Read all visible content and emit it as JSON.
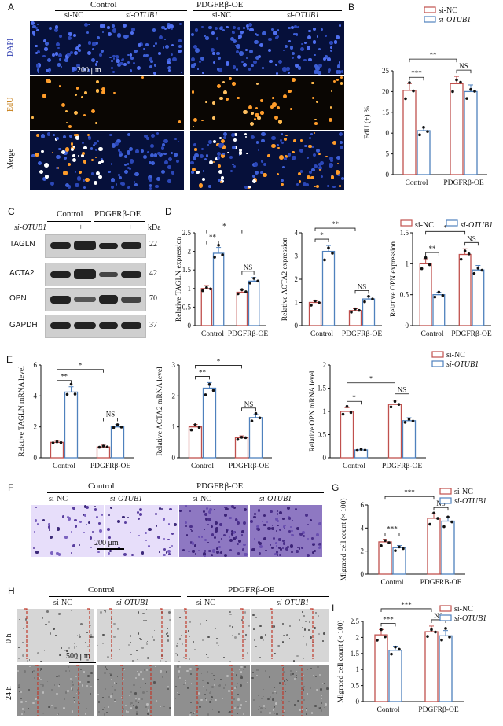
{
  "panels": {
    "A": {
      "letter": "A",
      "groups": [
        "Control",
        "PDGFRβ-OE"
      ],
      "cols": [
        "si-NC",
        "si-OTUB1",
        "si-NC",
        "si-OTUB1"
      ],
      "rows": [
        "DAPI",
        "EdU",
        "Merge"
      ],
      "scale": "200 μm"
    },
    "B": {
      "letter": "B"
    },
    "C": {
      "letter": "C",
      "groups": [
        "Control",
        "PDGFRβ-OE"
      ],
      "si_label": "si-OTUB1",
      "signs": [
        "−",
        "+",
        "−",
        "+"
      ],
      "kda_label": "kDa",
      "proteins": [
        {
          "name": "TAGLN",
          "kda": "22"
        },
        {
          "name": "ACTA2",
          "kda": "42"
        },
        {
          "name": "OPN",
          "kda": "70"
        },
        {
          "name": "GAPDH",
          "kda": "37"
        }
      ]
    },
    "D": {
      "letter": "D"
    },
    "E": {
      "letter": "E"
    },
    "F": {
      "letter": "F",
      "groups": [
        "Control",
        "PDGFRβ-OE"
      ],
      "cols": [
        "si-NC",
        "si-OTUB1",
        "si-NC",
        "si-OTUB1"
      ],
      "scale": "200 μm"
    },
    "G": {
      "letter": "G"
    },
    "H": {
      "letter": "H",
      "groups": [
        "Control",
        "PDGFRβ-OE"
      ],
      "cols": [
        "si-NC",
        "si-OTUB1",
        "si-NC",
        "si-OTUB1"
      ],
      "rows": [
        "0 h",
        "24 h"
      ],
      "scale": "500 μm"
    },
    "I": {
      "letter": "I"
    }
  },
  "legend": {
    "si_nc": "si-NC",
    "si_otub1": "si-OTUB1"
  },
  "colors": {
    "si_nc": "#c0504d",
    "si_otub1": "#4f81bd"
  },
  "chart_data": [
    {
      "id": "B",
      "type": "bar",
      "categories": [
        "Control",
        "PDGFRβ-OE"
      ],
      "series": [
        {
          "name": "si-NC",
          "values": [
            20.3,
            21.9
          ]
        },
        {
          "name": "si-OTUB1",
          "values": [
            10.6,
            20.0
          ]
        }
      ],
      "ylabel": "EdU (+) %",
      "ylim": [
        0,
        25
      ],
      "yticks": [
        0,
        5,
        10,
        15,
        20,
        25
      ],
      "sig": {
        "within": [
          "***",
          "NS"
        ],
        "across": "**"
      }
    },
    {
      "id": "D1",
      "type": "bar",
      "categories": [
        "Control",
        "PDGFRβ-OE"
      ],
      "series": [
        {
          "name": "si-NC",
          "values": [
            1.0,
            0.9
          ]
        },
        {
          "name": "si-OTUB1",
          "values": [
            1.95,
            1.2
          ]
        }
      ],
      "ylabel": "Relative TAGLN expression",
      "ylim": [
        0,
        2.5
      ],
      "yticks": [
        0,
        0.5,
        1.0,
        1.5,
        2.0,
        2.5
      ],
      "sig": {
        "within": [
          "**",
          "NS"
        ],
        "across": "*"
      }
    },
    {
      "id": "D2",
      "type": "bar",
      "categories": [
        "Control",
        "PDGFRβ-OE"
      ],
      "series": [
        {
          "name": "si-NC",
          "values": [
            1.0,
            0.65
          ]
        },
        {
          "name": "si-OTUB1",
          "values": [
            3.2,
            1.15
          ]
        }
      ],
      "ylabel": "Relative ACTA2 expression",
      "ylim": [
        0,
        4
      ],
      "yticks": [
        0,
        1,
        2,
        3,
        4
      ],
      "sig": {
        "within": [
          "*",
          "NS"
        ],
        "across": "**"
      }
    },
    {
      "id": "D3",
      "type": "bar",
      "categories": [
        "Control",
        "PDGFRβ-OE"
      ],
      "series": [
        {
          "name": "si-NC",
          "values": [
            1.0,
            1.15
          ]
        },
        {
          "name": "si-OTUB1",
          "values": [
            0.5,
            0.9
          ]
        }
      ],
      "ylabel": "Relative OPN expression",
      "ylim": [
        0,
        1.5
      ],
      "yticks": [
        0,
        0.5,
        1.0,
        1.5
      ],
      "sig": {
        "within": [
          "**",
          "NS"
        ],
        "across": "*"
      }
    },
    {
      "id": "E1",
      "type": "bar",
      "categories": [
        "Control",
        "PDGFRβ-OE"
      ],
      "series": [
        {
          "name": "si-NC",
          "values": [
            1.0,
            0.7
          ]
        },
        {
          "name": "si-OTUB1",
          "values": [
            4.25,
            2.0
          ]
        }
      ],
      "ylabel": "Relative TAGLN mRNA level",
      "ylim": [
        0,
        6
      ],
      "yticks": [
        0,
        2,
        4,
        6
      ],
      "sig": {
        "within": [
          "**",
          "NS"
        ],
        "across": "*"
      }
    },
    {
      "id": "E2",
      "type": "bar",
      "categories": [
        "Control",
        "PDGFRβ-OE"
      ],
      "series": [
        {
          "name": "si-NC",
          "values": [
            1.0,
            0.65
          ]
        },
        {
          "name": "si-OTUB1",
          "values": [
            2.25,
            1.3
          ]
        }
      ],
      "ylabel": "Relative ACTA2 mRNA level",
      "ylim": [
        0,
        3
      ],
      "yticks": [
        0,
        1,
        2,
        3
      ],
      "sig": {
        "within": [
          "**",
          "NS"
        ],
        "across": "*"
      }
    },
    {
      "id": "E3",
      "type": "bar",
      "categories": [
        "Control",
        "PDGFRβ-OE"
      ],
      "series": [
        {
          "name": "si-NC",
          "values": [
            1.0,
            1.15
          ]
        },
        {
          "name": "si-OTUB1",
          "values": [
            0.17,
            0.8
          ]
        }
      ],
      "ylabel": "Relative OPN mRNA level",
      "ylim": [
        0,
        2.0
      ],
      "yticks": [
        0,
        0.5,
        1.0,
        1.5,
        2.0
      ],
      "sig": {
        "within": [
          "*",
          "NS"
        ],
        "across": "*"
      }
    },
    {
      "id": "G",
      "type": "bar",
      "categories": [
        "Control",
        "PDGFRB-OE"
      ],
      "series": [
        {
          "name": "si-NC",
          "values": [
            2.8,
            4.85
          ]
        },
        {
          "name": "si-OTUB1",
          "values": [
            2.3,
            4.6
          ]
        }
      ],
      "ylabel": "Migrated cell count (× 100)",
      "ylim": [
        0,
        6
      ],
      "yticks": [
        0,
        2,
        4,
        6
      ],
      "sig": {
        "within": [
          "***",
          "NS"
        ],
        "across": "***"
      }
    },
    {
      "id": "I",
      "type": "bar",
      "categories": [
        "Control",
        "PDGFRβ-OE"
      ],
      "series": [
        {
          "name": "si-NC",
          "values": [
            2.08,
            2.18
          ]
        },
        {
          "name": "si-OTUB1",
          "values": [
            1.6,
            2.05
          ]
        }
      ],
      "ylabel": "Migrated cell count (× 100)",
      "ylim": [
        0,
        2.5
      ],
      "yticks": [
        0,
        0.5,
        1.0,
        1.5,
        2.0,
        2.5
      ],
      "sig": {
        "within": [
          "***",
          "NS"
        ],
        "across": "***"
      }
    }
  ]
}
